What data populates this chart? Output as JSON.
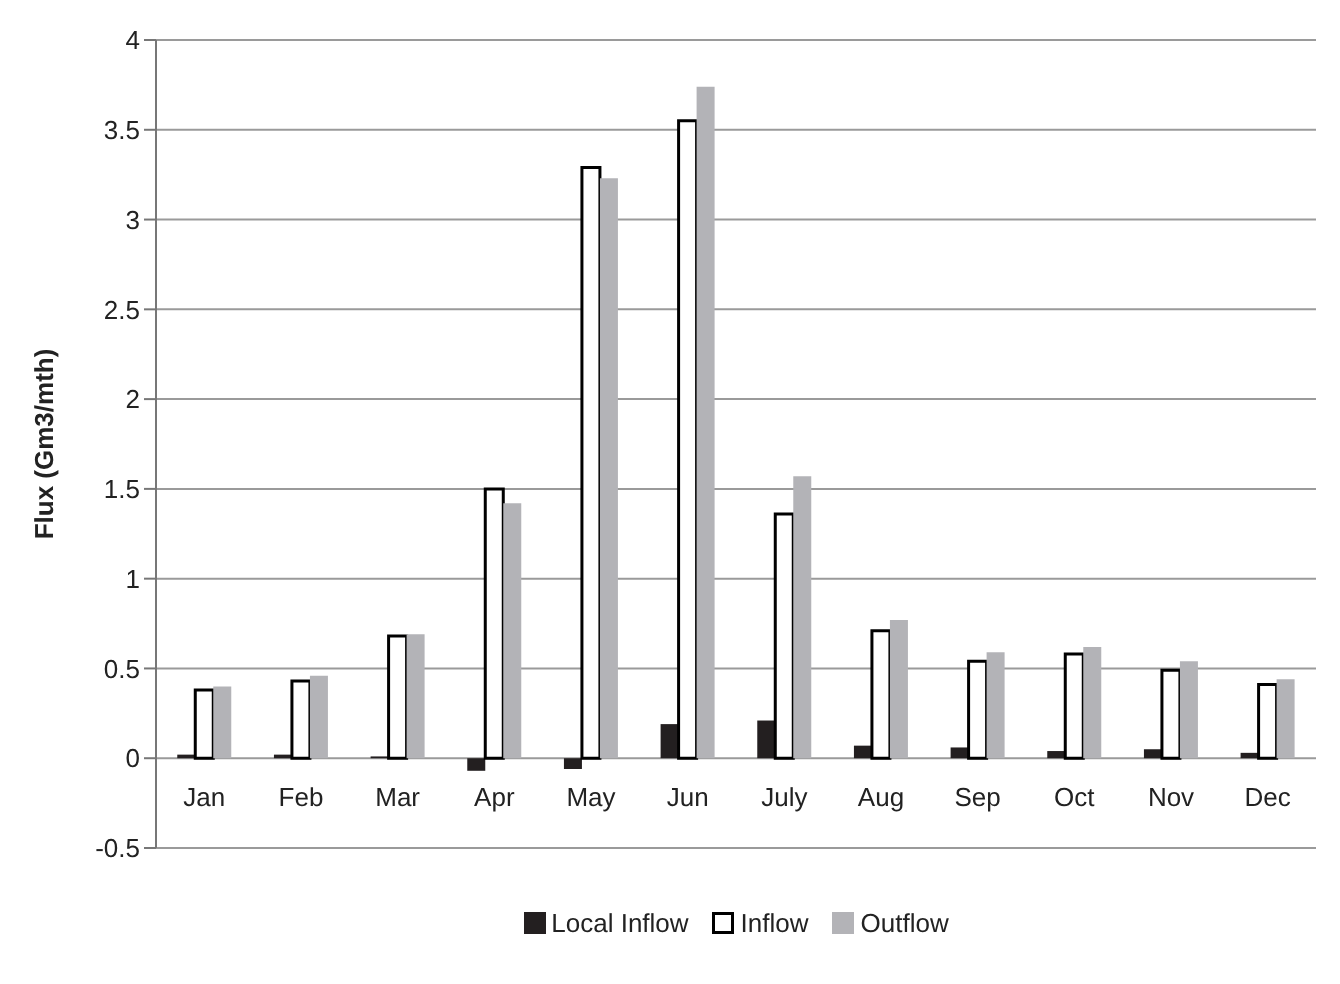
{
  "chart_data": {
    "type": "bar",
    "ylabel": "Flux (Gm3/mth)",
    "categories": [
      "Jan",
      "Feb",
      "Mar",
      "Apr",
      "May",
      "Jun",
      "July",
      "Aug",
      "Sep",
      "Oct",
      "Nov",
      "Dec"
    ],
    "series": [
      {
        "name": "Local Inflow",
        "color": "#231f20",
        "values": [
          0.02,
          0.02,
          0.01,
          -0.07,
          -0.06,
          0.19,
          0.21,
          0.07,
          0.06,
          0.04,
          0.05,
          0.03
        ]
      },
      {
        "name": "Inflow",
        "color": "#ffffff",
        "values": [
          0.38,
          0.43,
          0.68,
          1.5,
          3.29,
          3.55,
          1.36,
          0.71,
          0.54,
          0.58,
          0.49,
          0.41
        ]
      },
      {
        "name": "Outflow",
        "color": "#b3b3b7",
        "values": [
          0.4,
          0.46,
          0.69,
          1.42,
          3.23,
          3.74,
          1.57,
          0.77,
          0.59,
          0.62,
          0.54,
          0.44
        ]
      }
    ],
    "ylim": [
      -0.5,
      4
    ],
    "yticks": [
      -0.5,
      0,
      0.5,
      1,
      1.5,
      2,
      2.5,
      3,
      3.5,
      4
    ],
    "grid": "y",
    "legend": "bottom"
  }
}
